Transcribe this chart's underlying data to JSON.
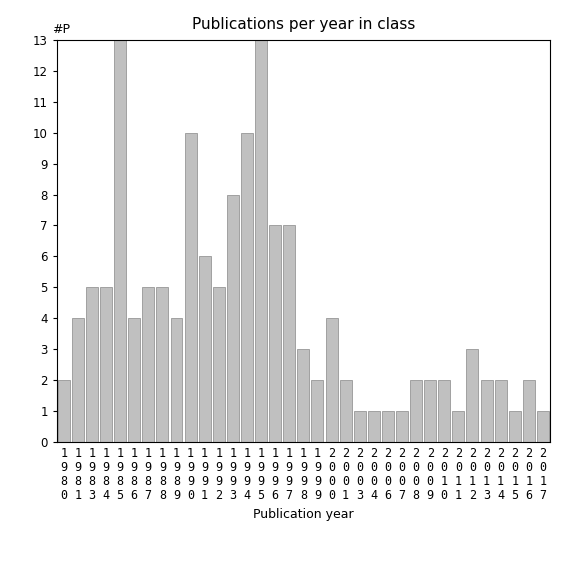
{
  "title": "Publications per year in class",
  "xlabel": "Publication year",
  "ylabel": "#P",
  "categories": [
    "1980",
    "1981",
    "1983",
    "1984",
    "1985",
    "1986",
    "1987",
    "1988",
    "1989",
    "1990",
    "1991",
    "1992",
    "1993",
    "1994",
    "1995",
    "1996",
    "1997",
    "1998",
    "1999",
    "2000",
    "2001",
    "2003",
    "2004",
    "2006",
    "2007",
    "2008",
    "2009",
    "2010",
    "2011",
    "2012",
    "2013",
    "2014",
    "2015",
    "2016",
    "2017"
  ],
  "values": [
    2,
    4,
    5,
    5,
    13,
    4,
    5,
    5,
    4,
    10,
    6,
    5,
    8,
    10,
    13,
    7,
    7,
    3,
    2,
    4,
    2,
    1,
    1,
    1,
    1,
    2,
    2,
    2,
    1,
    3,
    2,
    2,
    1,
    2,
    1
  ],
  "bar_color": "#c0c0c0",
  "bar_edge_color": "#888888",
  "ylim": [
    0,
    13
  ],
  "yticks": [
    0,
    1,
    2,
    3,
    4,
    5,
    6,
    7,
    8,
    9,
    10,
    11,
    12,
    13
  ],
  "bg_color": "#ffffff",
  "title_fontsize": 11,
  "label_fontsize": 9,
  "tick_fontsize": 8.5
}
